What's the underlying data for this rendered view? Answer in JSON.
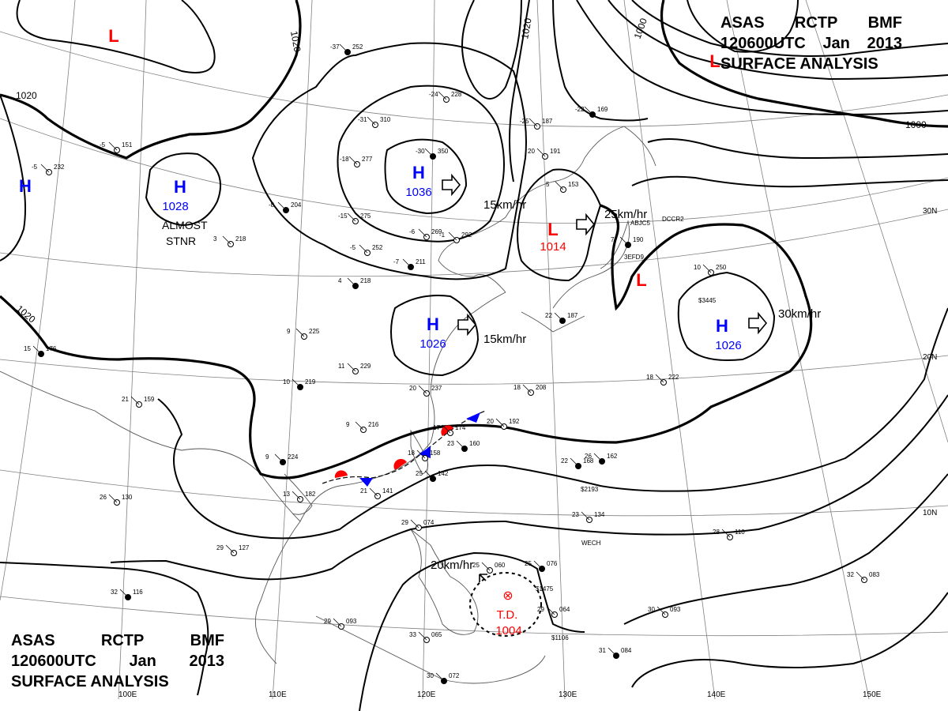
{
  "header": {
    "line1": "ASAS    RCTP    BMF",
    "line2_time": "120600UTC",
    "line2_month": "Jan",
    "line2_year": "2013",
    "line3": "SURFACE  ANALYSIS"
  },
  "footer": {
    "line1": "ASAS    RCTP    BMF",
    "line2_time": "120600UTC",
    "line2_month": "Jan",
    "line2_year": "2013",
    "line3": "SURFACE  ANALYSIS"
  },
  "colors": {
    "high": "#0000ff",
    "low": "#ff0000",
    "isobar": "#000000",
    "grid": "#808080",
    "coast": "#555555",
    "warm_front": "#ff0000",
    "cold_front": "#0000ff"
  },
  "longitude_labels": [
    "100E",
    "110E",
    "120E",
    "130E",
    "140E",
    "150E"
  ],
  "latitude_labels": [
    "30N",
    "20N",
    "10N"
  ],
  "pressure_systems": [
    {
      "type": "H",
      "value": "1036",
      "motion": "15km/hr"
    },
    {
      "type": "H",
      "value": "1028",
      "note": "ALMOST STNR"
    },
    {
      "type": "H",
      "value": "1026",
      "motion": "15km/hr"
    },
    {
      "type": "H",
      "value": "1026",
      "motion": "30km/hr"
    },
    {
      "type": "H",
      "value": ""
    },
    {
      "type": "L",
      "value": "1014",
      "motion": "25km/hr"
    },
    {
      "type": "L",
      "value": ""
    },
    {
      "type": "L",
      "value": ""
    },
    {
      "type": "L",
      "value": ""
    },
    {
      "type": "T.D.",
      "value": "1004",
      "motion": "20km/hr"
    }
  ],
  "isobar_labels": [
    "1020",
    "1020",
    "1020",
    "1020",
    "1000",
    "1000"
  ],
  "station_plots": [
    {
      "pressure": "350",
      "temp": "-30"
    },
    {
      "pressure": "310",
      "temp": "-31"
    },
    {
      "pressure": "228",
      "temp": "-24"
    },
    {
      "pressure": "252",
      "temp": "-37"
    },
    {
      "pressure": "277",
      "temp": "-18"
    },
    {
      "pressure": "275",
      "temp": "-15"
    },
    {
      "pressure": "204",
      "temp": "-8"
    },
    {
      "pressure": "218",
      "temp": "3"
    },
    {
      "pressure": "252",
      "temp": "-5"
    },
    {
      "pressure": "211",
      "temp": "-7"
    },
    {
      "pressure": "269",
      "temp": "-6"
    },
    {
      "pressure": "292",
      "temp": "-1"
    },
    {
      "pressure": "218",
      "temp": "4"
    },
    {
      "pressure": "225",
      "temp": "9"
    },
    {
      "pressure": "229",
      "temp": "11"
    },
    {
      "pressure": "219",
      "temp": "10"
    },
    {
      "pressure": "237",
      "temp": "20"
    },
    {
      "pressure": "216",
      "temp": "9"
    },
    {
      "pressure": "224",
      "temp": "9"
    },
    {
      "pressure": "182",
      "temp": "13"
    },
    {
      "pressure": "141",
      "temp": "21"
    },
    {
      "pressure": "142",
      "temp": "25"
    },
    {
      "pressure": "174",
      "temp": "17"
    },
    {
      "pressure": "158",
      "temp": "18"
    },
    {
      "pressure": "160",
      "temp": "23"
    },
    {
      "pressure": "208",
      "temp": "18"
    },
    {
      "pressure": "192",
      "temp": "20"
    },
    {
      "pressure": "168",
      "temp": "22"
    },
    {
      "pressure": "134",
      "temp": "23"
    },
    {
      "pressure": "110",
      "temp": "28"
    },
    {
      "pressure": "162",
      "temp": "26"
    },
    {
      "pressure": "127",
      "temp": "29"
    },
    {
      "pressure": "130",
      "temp": "26"
    },
    {
      "pressure": "116",
      "temp": "32"
    },
    {
      "pressure": "093",
      "temp": "29"
    },
    {
      "pressure": "065",
      "temp": "33"
    },
    {
      "pressure": "072",
      "temp": "30"
    },
    {
      "pressure": "074",
      "temp": "29"
    },
    {
      "pressure": "060",
      "temp": "25"
    },
    {
      "pressure": "076",
      "temp": "25"
    },
    {
      "pressure": "064",
      "temp": "29"
    },
    {
      "pressure": "093",
      "temp": "30"
    },
    {
      "pressure": "084",
      "temp": "31"
    },
    {
      "pressure": "083",
      "temp": "32"
    },
    {
      "pressure": "222",
      "temp": "18"
    },
    {
      "pressure": "190",
      "temp": "7"
    },
    {
      "pressure": "250",
      "temp": "10"
    },
    {
      "pressure": "153",
      "temp": "5"
    },
    {
      "pressure": "187",
      "temp": "22"
    },
    {
      "pressure": "191",
      "temp": "20"
    },
    {
      "pressure": "187",
      "temp": "-25"
    },
    {
      "pressure": "169",
      "temp": "-22"
    },
    {
      "pressure": "151",
      "temp": "-5"
    },
    {
      "pressure": "232",
      "temp": "-5"
    },
    {
      "pressure": "176",
      "temp": "15"
    },
    {
      "pressure": "159",
      "temp": "21"
    }
  ],
  "ship_codes": [
    "ABJC5",
    "DCCR2",
    "3EFD9",
    "WECH"
  ],
  "ship_codes_extra": [
    "$3445",
    "$2193",
    "$1475",
    "$1106"
  ]
}
